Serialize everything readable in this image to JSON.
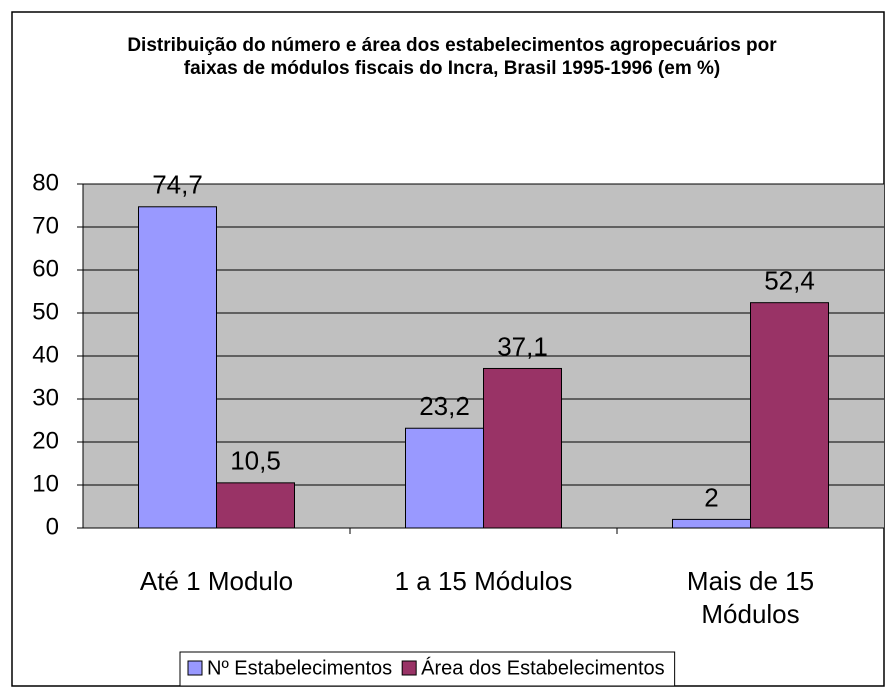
{
  "chart_data": {
    "type": "bar",
    "title": "Distribuição do número e área dos estabelecimentos agropecuários por faixas de módulos fiscais do Incra, Brasil 1995-1996 (em %)",
    "categories": [
      "Até 1 Modulo",
      "1 a 15 Módulos",
      "Mais de 15 Módulos"
    ],
    "series": [
      {
        "name": "Nº Estabelecimentos",
        "color": "#9999ff",
        "values": [
          74.7,
          23.2,
          2
        ],
        "value_labels": [
          "74,7",
          "23,2",
          "2"
        ]
      },
      {
        "name": "Área dos Estabelecimentos",
        "color": "#993366",
        "values": [
          10.5,
          37.1,
          52.4
        ],
        "value_labels": [
          "10,5",
          "37,1",
          "52,4"
        ]
      }
    ],
    "ylim": [
      0,
      80
    ],
    "yticks": [
      0,
      10,
      20,
      30,
      40,
      50,
      60,
      70,
      80
    ],
    "grid": true,
    "legend": "bottom"
  }
}
